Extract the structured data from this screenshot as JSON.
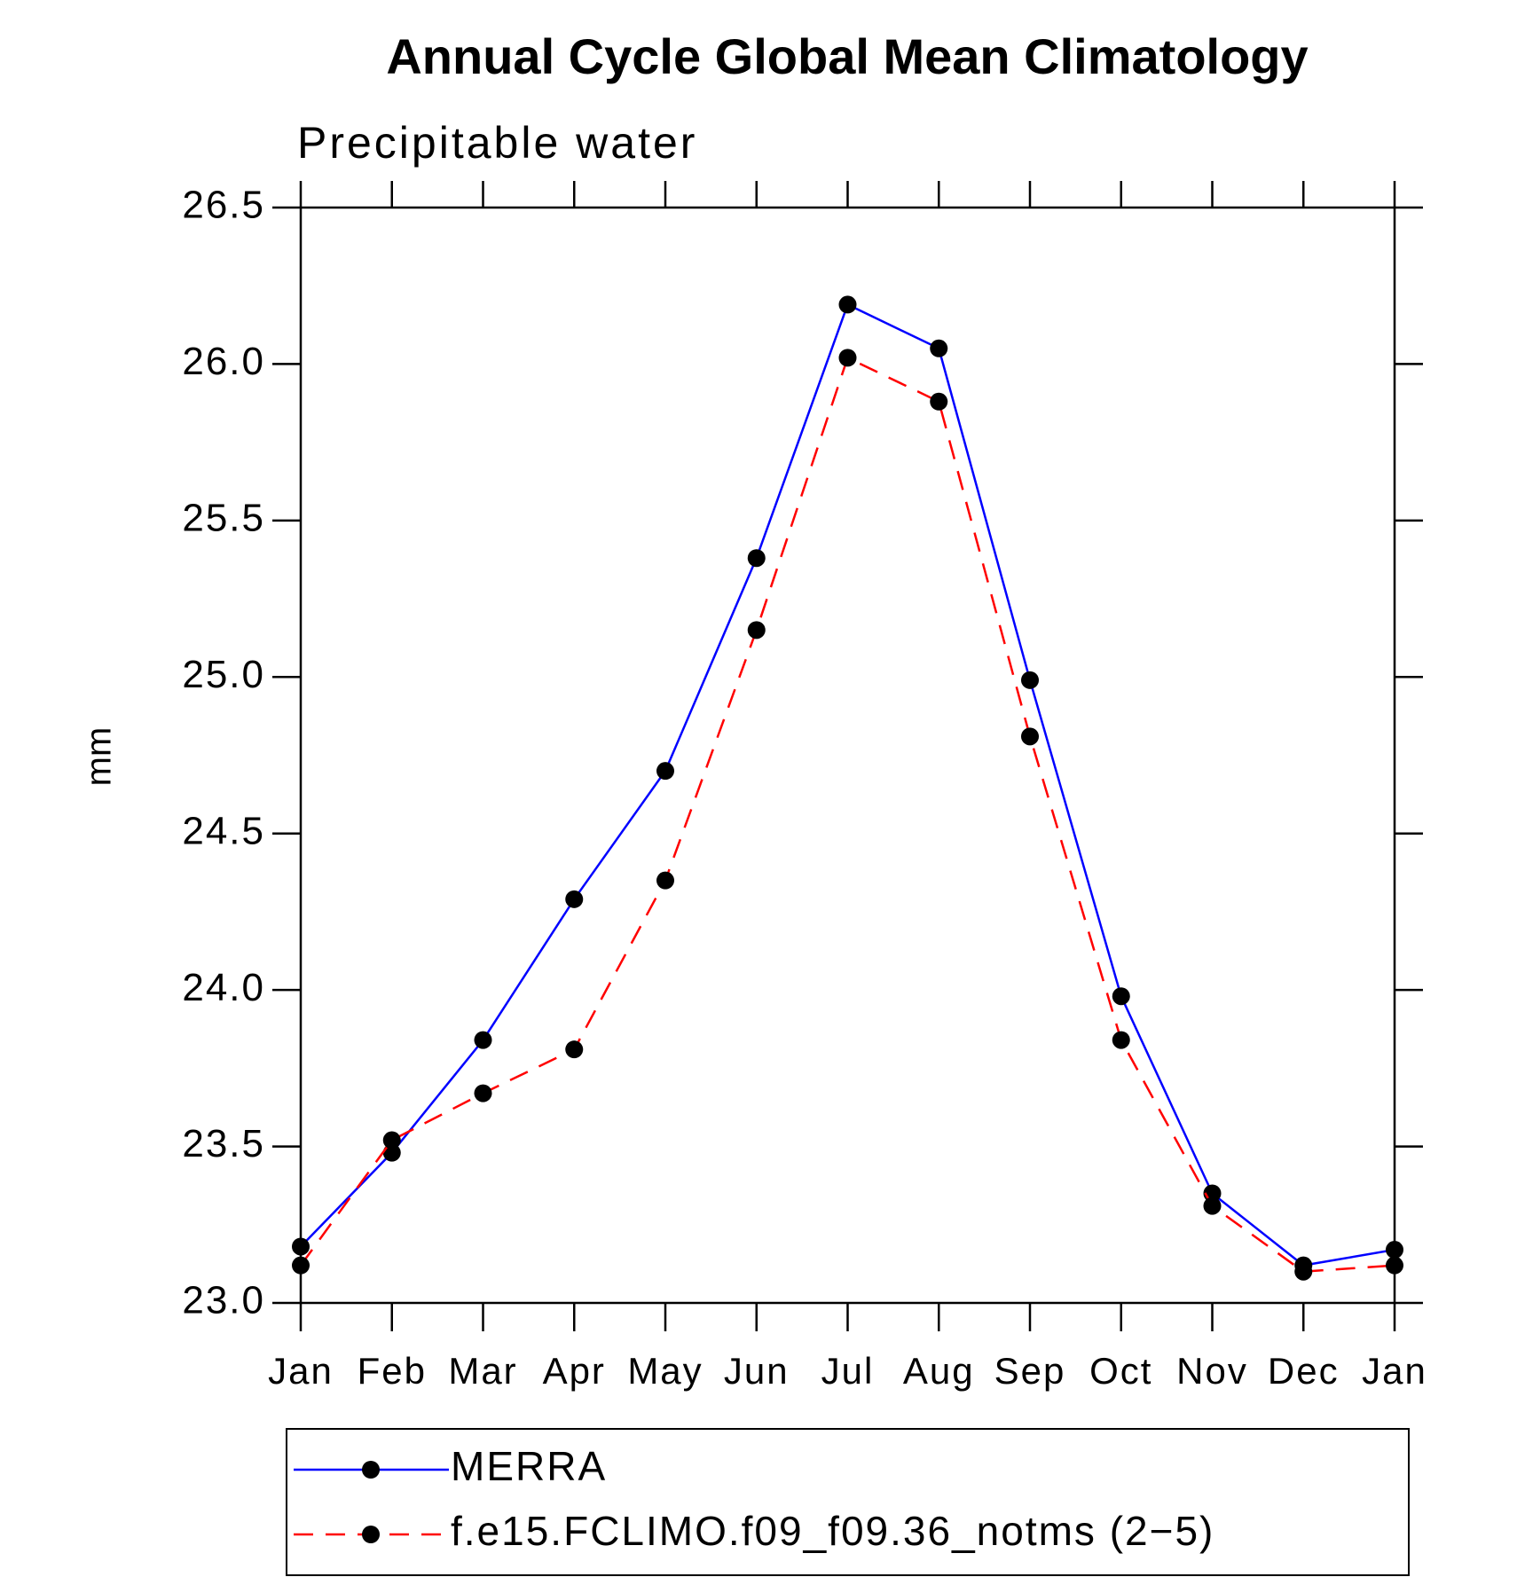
{
  "chart_data": {
    "type": "line",
    "title": "Annual Cycle Global Mean Climatology",
    "subtitle": "Precipitable water",
    "y_label": "mm",
    "categories": [
      "Jan",
      "Feb",
      "Mar",
      "Apr",
      "May",
      "Jun",
      "Jul",
      "Aug",
      "Sep",
      "Oct",
      "Nov",
      "Dec",
      "Jan"
    ],
    "series": [
      {
        "name": "MERRA",
        "color": "#0000ff",
        "linestyle": "solid",
        "values": [
          23.18,
          23.48,
          23.84,
          24.29,
          24.7,
          25.38,
          26.19,
          26.05,
          24.99,
          23.98,
          23.35,
          23.12,
          23.17
        ]
      },
      {
        "name": "f.e15.FCLIMO.f09_f09.36_notms (2−5)",
        "color": "#ff0000",
        "linestyle": "dashed",
        "values": [
          23.12,
          23.52,
          23.67,
          23.81,
          24.35,
          25.15,
          26.02,
          25.88,
          24.81,
          23.84,
          23.31,
          23.1,
          23.12
        ]
      }
    ],
    "ylim": [
      23.0,
      26.5
    ],
    "yticks": [
      {
        "value": 23,
        "label": "23.0"
      },
      23.5,
      {
        "value": 24,
        "label": "24.0"
      },
      24.5,
      {
        "value": 25,
        "label": "25.0"
      },
      25.5,
      {
        "value": 26,
        "label": "26.0"
      },
      26.5
    ],
    "marker_color": "#000000"
  }
}
